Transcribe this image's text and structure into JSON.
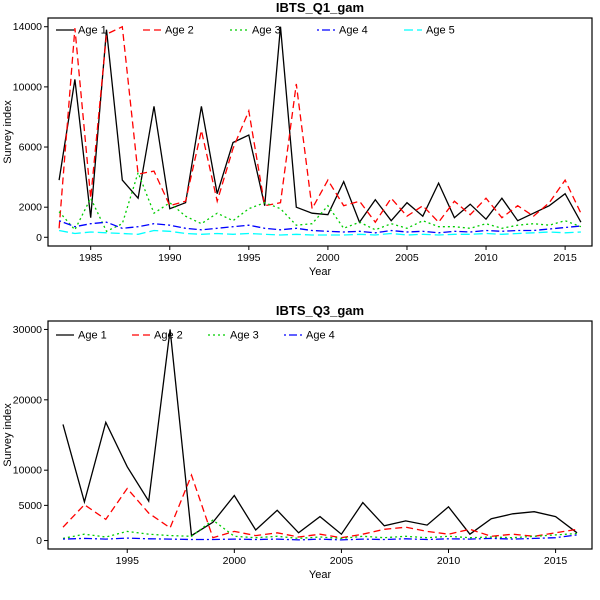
{
  "colors": {
    "age1": "#000000",
    "age2": "#FF0000",
    "age3": "#00CD00",
    "age4": "#0000FF",
    "age5": "#00FFFF"
  },
  "chart_data": [
    {
      "type": "line",
      "title": "IBTS_Q1_gam",
      "xlabel": "Year",
      "ylabel": "Survey index",
      "xlim": [
        1982.3,
        2016.7
      ],
      "ylim": [
        -580,
        14580
      ],
      "xticks": [
        1985,
        1990,
        1995,
        2000,
        2005,
        2010,
        2015
      ],
      "yticks": [
        0,
        2000,
        6000,
        10000,
        14000
      ],
      "legend_position": "top-left-horizontal",
      "grid": false,
      "x": [
        1983,
        1984,
        1985,
        1986,
        1987,
        1988,
        1989,
        1990,
        1991,
        1992,
        1993,
        1994,
        1995,
        1996,
        1997,
        1998,
        1999,
        2000,
        2001,
        2002,
        2003,
        2004,
        2005,
        2006,
        2007,
        2008,
        2009,
        2010,
        2011,
        2012,
        2013,
        2014,
        2015,
        2016
      ],
      "series": [
        {
          "name": "Age 1",
          "color": "#000000",
          "linetype": "solid",
          "values": [
            3800,
            10500,
            1300,
            13800,
            3800,
            2600,
            8700,
            1900,
            2300,
            8700,
            2900,
            6300,
            6800,
            2100,
            14000,
            2000,
            1600,
            1500,
            3700,
            1000,
            2500,
            1100,
            2300,
            1400,
            3600,
            1300,
            2200,
            1200,
            2600,
            1100,
            1600,
            2100,
            2900,
            1000
          ]
        },
        {
          "name": "Age 2",
          "color": "#FF0000",
          "linetype": "dashed",
          "values": [
            600,
            13900,
            2600,
            13500,
            14000,
            4200,
            4400,
            2100,
            2400,
            7100,
            2400,
            5900,
            8400,
            2100,
            2300,
            10200,
            1900,
            3800,
            2100,
            2400,
            1000,
            2600,
            1400,
            2100,
            1000,
            2400,
            1500,
            2600,
            1300,
            2100,
            1400,
            2300,
            3800,
            1600
          ]
        },
        {
          "name": "Age 3",
          "color": "#00CD00",
          "linetype": "dotted",
          "values": [
            1700,
            500,
            2600,
            400,
            900,
            4300,
            1600,
            2300,
            1400,
            900,
            1600,
            1100,
            1900,
            2300,
            1900,
            800,
            900,
            2100,
            600,
            1000,
            500,
            900,
            600,
            1100,
            700,
            700,
            600,
            900,
            600,
            800,
            900,
            800,
            1100,
            700
          ]
        },
        {
          "name": "Age 4",
          "color": "#0000FF",
          "linetype": "dotdash",
          "values": [
            1100,
            700,
            900,
            1000,
            600,
            700,
            900,
            800,
            600,
            500,
            600,
            700,
            800,
            600,
            500,
            600,
            450,
            400,
            350,
            400,
            300,
            450,
            350,
            400,
            300,
            400,
            350,
            450,
            400,
            450,
            450,
            550,
            650,
            750
          ]
        },
        {
          "name": "Age 5",
          "color": "#00FFFF",
          "linetype": "longdash",
          "values": [
            450,
            250,
            350,
            300,
            250,
            200,
            450,
            400,
            250,
            200,
            250,
            200,
            250,
            200,
            150,
            200,
            150,
            150,
            150,
            200,
            150,
            250,
            150,
            200,
            150,
            200,
            200,
            250,
            200,
            250,
            300,
            350,
            300,
            350
          ]
        }
      ]
    },
    {
      "type": "line",
      "title": "IBTS_Q3_gam",
      "xlabel": "Year",
      "ylabel": "Survey index",
      "xlim": [
        1991.3,
        2016.7
      ],
      "ylim": [
        -1200,
        31200
      ],
      "xticks": [
        1995,
        2000,
        2005,
        2010,
        2015
      ],
      "yticks": [
        0,
        5000,
        10000,
        20000,
        30000
      ],
      "legend_position": "top-left-horizontal",
      "grid": false,
      "x": [
        1992,
        1993,
        1994,
        1995,
        1996,
        1997,
        1998,
        1999,
        2000,
        2001,
        2002,
        2003,
        2004,
        2005,
        2006,
        2007,
        2008,
        2009,
        2010,
        2011,
        2012,
        2013,
        2014,
        2015,
        2016
      ],
      "series": [
        {
          "name": "Age 1",
          "color": "#000000",
          "linetype": "solid",
          "values": [
            16500,
            5500,
            16800,
            10500,
            5600,
            30000,
            700,
            2600,
            6400,
            1500,
            4300,
            1100,
            3400,
            900,
            5400,
            2100,
            2800,
            2200,
            4800,
            900,
            3100,
            3800,
            4100,
            3400,
            1100
          ]
        },
        {
          "name": "Age 2",
          "color": "#FF0000",
          "linetype": "dashed",
          "values": [
            1900,
            5100,
            3000,
            7400,
            3900,
            1800,
            9300,
            400,
            1300,
            700,
            1100,
            500,
            900,
            400,
            900,
            1600,
            1900,
            1300,
            900,
            1600,
            600,
            900,
            600,
            1100,
            1600
          ]
        },
        {
          "name": "Age 3",
          "color": "#00CD00",
          "linetype": "dotted",
          "values": [
            300,
            900,
            500,
            1300,
            900,
            700,
            600,
            2900,
            600,
            400,
            600,
            300,
            500,
            300,
            600,
            400,
            600,
            400,
            600,
            400,
            500,
            400,
            600,
            800,
            1000
          ]
        },
        {
          "name": "Age 4",
          "color": "#0000FF",
          "linetype": "dotdash",
          "values": [
            200,
            300,
            200,
            350,
            250,
            200,
            150,
            150,
            200,
            150,
            200,
            100,
            200,
            100,
            200,
            150,
            250,
            150,
            250,
            200,
            300,
            200,
            300,
            400,
            800
          ]
        }
      ]
    }
  ]
}
